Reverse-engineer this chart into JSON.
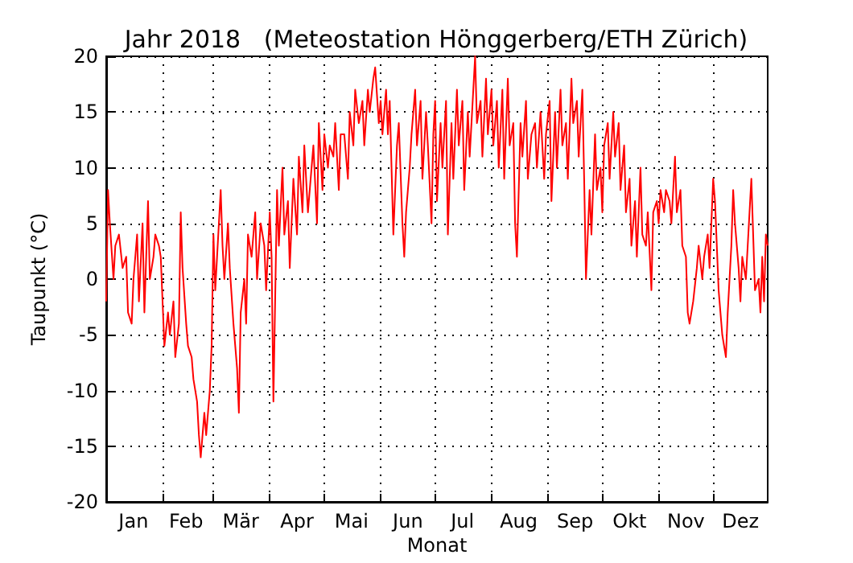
{
  "chart_data": {
    "type": "line",
    "title": "Jahr 2018   (Meteostation Hönggerberg/ETH Zürich)",
    "xlabel": "Monat",
    "ylabel": "Taupunkt (°C)",
    "x": [
      "2018-01-01",
      "2018-01-02",
      "2018-01-03",
      "2018-01-05",
      "2018-01-06",
      "2018-01-08",
      "2018-01-10",
      "2018-01-12",
      "2018-01-13",
      "2018-01-15",
      "2018-01-16",
      "2018-01-18",
      "2018-01-19",
      "2018-01-21",
      "2018-01-22",
      "2018-01-24",
      "2018-01-25",
      "2018-01-27",
      "2018-01-28",
      "2018-01-30",
      "2018-01-31",
      "2018-02-01",
      "2018-02-02",
      "2018-02-04",
      "2018-02-05",
      "2018-02-07",
      "2018-02-08",
      "2018-02-10",
      "2018-02-11",
      "2018-02-12",
      "2018-02-14",
      "2018-02-15",
      "2018-02-17",
      "2018-02-18",
      "2018-02-20",
      "2018-02-21",
      "2018-02-22",
      "2018-02-24",
      "2018-02-25",
      "2018-02-27",
      "2018-02-28",
      "2018-03-01",
      "2018-03-02",
      "2018-03-03",
      "2018-03-05",
      "2018-03-06",
      "2018-03-07",
      "2018-03-09",
      "2018-03-10",
      "2018-03-12",
      "2018-03-14",
      "2018-03-15",
      "2018-03-16",
      "2018-03-18",
      "2018-03-19",
      "2018-03-20",
      "2018-03-22",
      "2018-03-24",
      "2018-03-25",
      "2018-03-27",
      "2018-03-29",
      "2018-03-30",
      "2018-04-01",
      "2018-04-02",
      "2018-04-03",
      "2018-04-05",
      "2018-04-06",
      "2018-04-08",
      "2018-04-09",
      "2018-04-11",
      "2018-04-12",
      "2018-04-14",
      "2018-04-16",
      "2018-04-17",
      "2018-04-19",
      "2018-04-20",
      "2018-04-22",
      "2018-04-23",
      "2018-04-25",
      "2018-04-27",
      "2018-04-28",
      "2018-04-30",
      "2018-05-01",
      "2018-05-03",
      "2018-05-04",
      "2018-05-06",
      "2018-05-07",
      "2018-05-09",
      "2018-05-10",
      "2018-05-12",
      "2018-05-14",
      "2018-05-15",
      "2018-05-17",
      "2018-05-18",
      "2018-05-20",
      "2018-05-22",
      "2018-05-23",
      "2018-05-25",
      "2018-05-26",
      "2018-05-28",
      "2018-05-29",
      "2018-05-31",
      "2018-06-01",
      "2018-06-02",
      "2018-06-04",
      "2018-06-05",
      "2018-06-06",
      "2018-06-08",
      "2018-06-09",
      "2018-06-10",
      "2018-06-11",
      "2018-06-13",
      "2018-06-14",
      "2018-06-15",
      "2018-06-17",
      "2018-06-18",
      "2018-06-20",
      "2018-06-21",
      "2018-06-23",
      "2018-06-24",
      "2018-06-26",
      "2018-06-27",
      "2018-06-29",
      "2018-06-30",
      "2018-07-01",
      "2018-07-02",
      "2018-07-04",
      "2018-07-05",
      "2018-07-07",
      "2018-07-08",
      "2018-07-10",
      "2018-07-11",
      "2018-07-13",
      "2018-07-14",
      "2018-07-16",
      "2018-07-17",
      "2018-07-19",
      "2018-07-20",
      "2018-07-22",
      "2018-07-23",
      "2018-07-24",
      "2018-07-26",
      "2018-07-27",
      "2018-07-29",
      "2018-07-30",
      "2018-08-01",
      "2018-08-02",
      "2018-08-04",
      "2018-08-05",
      "2018-08-07",
      "2018-08-08",
      "2018-08-10",
      "2018-08-11",
      "2018-08-13",
      "2018-08-14",
      "2018-08-15",
      "2018-08-17",
      "2018-08-18",
      "2018-08-20",
      "2018-08-21",
      "2018-08-23",
      "2018-08-25",
      "2018-08-26",
      "2018-08-28",
      "2018-08-30",
      "2018-08-31",
      "2018-09-02",
      "2018-09-03",
      "2018-09-05",
      "2018-09-06",
      "2018-09-08",
      "2018-09-09",
      "2018-09-11",
      "2018-09-12",
      "2018-09-14",
      "2018-09-15",
      "2018-09-17",
      "2018-09-18",
      "2018-09-20",
      "2018-09-21",
      "2018-09-22",
      "2018-09-24",
      "2018-09-25",
      "2018-09-27",
      "2018-09-28",
      "2018-09-30",
      "2018-10-01",
      "2018-10-02",
      "2018-10-04",
      "2018-10-05",
      "2018-10-07",
      "2018-10-08",
      "2018-10-10",
      "2018-10-11",
      "2018-10-13",
      "2018-10-14",
      "2018-10-16",
      "2018-10-17",
      "2018-10-19",
      "2018-10-20",
      "2018-10-22",
      "2018-10-23",
      "2018-10-25",
      "2018-10-26",
      "2018-10-28",
      "2018-10-29",
      "2018-10-31",
      "2018-11-01",
      "2018-11-02",
      "2018-11-04",
      "2018-11-05",
      "2018-11-07",
      "2018-11-08",
      "2018-11-10",
      "2018-11-11",
      "2018-11-13",
      "2018-11-14",
      "2018-11-16",
      "2018-11-17",
      "2018-11-18",
      "2018-11-20",
      "2018-11-22",
      "2018-11-23",
      "2018-11-25",
      "2018-11-26",
      "2018-11-28",
      "2018-11-29",
      "2018-12-01",
      "2018-12-02",
      "2018-12-03",
      "2018-12-04",
      "2018-12-05",
      "2018-12-06",
      "2018-12-07",
      "2018-12-08",
      "2018-12-09",
      "2018-12-11",
      "2018-12-12",
      "2018-12-13",
      "2018-12-15",
      "2018-12-16",
      "2018-12-17",
      "2018-12-19",
      "2018-12-20",
      "2018-12-22",
      "2018-12-23",
      "2018-12-24",
      "2018-12-26",
      "2018-12-27",
      "2018-12-28",
      "2018-12-29",
      "2018-12-30",
      "2018-12-31"
    ],
    "series": [
      {
        "color": "#ff0000",
        "values": [
          -2,
          8,
          5,
          0,
          3,
          4,
          1,
          2,
          -3,
          -4,
          0,
          4,
          -2,
          5,
          -3,
          7,
          0,
          2,
          4,
          3,
          2,
          -2,
          -6,
          -3,
          -5,
          -2,
          -7,
          -4,
          6,
          1,
          -4,
          -6,
          -7,
          -9,
          -11,
          -14,
          -16,
          -12,
          -14,
          -10,
          -6,
          4,
          -1,
          2,
          8,
          3,
          0,
          5,
          1,
          -4,
          -8,
          -12,
          -3,
          0,
          -4,
          4,
          2,
          6,
          0,
          5,
          3,
          -1,
          6,
          2,
          -11,
          8,
          3,
          10,
          4,
          7,
          1,
          9,
          4,
          11,
          6,
          12,
          6,
          8,
          12,
          5,
          14,
          8,
          13,
          10,
          12,
          11,
          14,
          8,
          13,
          13,
          9,
          15,
          12,
          17,
          14,
          16,
          12,
          17,
          15,
          18,
          19,
          14,
          16,
          13,
          17,
          13,
          16,
          4,
          8,
          12,
          14,
          5,
          2,
          6,
          10,
          13,
          17,
          12,
          16,
          9,
          15,
          12,
          5,
          13,
          16,
          7,
          14,
          10,
          16,
          4,
          14,
          9,
          17,
          12,
          16,
          8,
          15,
          11,
          17,
          20,
          14,
          16,
          11,
          18,
          13,
          17,
          12,
          16,
          10,
          17,
          9,
          18,
          12,
          14,
          5,
          2,
          14,
          11,
          16,
          9,
          13,
          14,
          10,
          15,
          9,
          13,
          16,
          7,
          15,
          10,
          17,
          12,
          14,
          9,
          18,
          14,
          16,
          11,
          17,
          9,
          0,
          8,
          4,
          13,
          8,
          10,
          6,
          12,
          14,
          9,
          15,
          11,
          14,
          8,
          12,
          6,
          9,
          3,
          7,
          2,
          10,
          4,
          3,
          6,
          -1,
          6,
          7,
          5,
          8,
          6,
          8,
          7,
          5,
          11,
          6,
          8,
          3,
          2,
          -3,
          -4,
          -2,
          1,
          3,
          0,
          2,
          4,
          1,
          9,
          7,
          3,
          -1,
          -3,
          -5,
          -6,
          -7,
          -3,
          3,
          8,
          5,
          1,
          -2,
          2,
          0,
          3,
          9,
          4,
          -1,
          0,
          -3,
          2,
          -2,
          4,
          3
        ]
      }
    ],
    "xlim": [
      "2018-01-01",
      "2018-12-31"
    ],
    "xticks": [
      {
        "value": "2018-01-01",
        "label": null
      },
      {
        "value": "2018-02-01",
        "label": null
      },
      {
        "value": "2018-03-01",
        "label": null
      },
      {
        "value": "2018-04-01",
        "label": null
      },
      {
        "value": "2018-05-01",
        "label": null
      },
      {
        "value": "2018-06-01",
        "label": null
      },
      {
        "value": "2018-07-01",
        "label": null
      },
      {
        "value": "2018-08-01",
        "label": null
      },
      {
        "value": "2018-09-01",
        "label": null
      },
      {
        "value": "2018-10-01",
        "label": null
      },
      {
        "value": "2018-11-01",
        "label": null
      },
      {
        "value": "2018-12-01",
        "label": null
      },
      {
        "value": "2018-01-16",
        "label": "Jan"
      },
      {
        "value": "2018-02-14",
        "label": "Feb"
      },
      {
        "value": "2018-03-16",
        "label": "Mär"
      },
      {
        "value": "2018-04-16",
        "label": "Apr"
      },
      {
        "value": "2018-05-16",
        "label": "Mai"
      },
      {
        "value": "2018-06-16",
        "label": "Jun"
      },
      {
        "value": "2018-07-16",
        "label": "Jul"
      },
      {
        "value": "2018-08-16",
        "label": "Aug"
      },
      {
        "value": "2018-09-16",
        "label": "Sep"
      },
      {
        "value": "2018-10-16",
        "label": "Okt"
      },
      {
        "value": "2018-11-16",
        "label": "Nov"
      },
      {
        "value": "2018-12-16",
        "label": "Dez"
      }
    ],
    "ylim": [
      -20,
      20
    ],
    "yticks": [
      -20,
      -15,
      -10,
      -5,
      0,
      5,
      10,
      15,
      20
    ],
    "grid": true,
    "line_style": "solid",
    "marker": "none"
  }
}
